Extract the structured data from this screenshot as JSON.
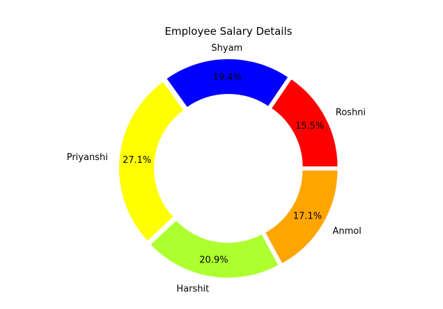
{
  "chart_data": {
    "type": "pie",
    "title": "Employee Salary Details",
    "donut": true,
    "categories": [
      "Roshni",
      "Shyam",
      "Priyanshi",
      "Harshit",
      "Anmol"
    ],
    "values": [
      15.5,
      19.4,
      27.1,
      20.9,
      17.1
    ],
    "value_labels": [
      "15.5%",
      "19.4%",
      "27.1%",
      "20.9%",
      "17.1%"
    ],
    "colors": [
      "#ff0000",
      "#0000ff",
      "#ffff00",
      "#adff2f",
      "#ffa500"
    ],
    "start_angle_deg": 0,
    "direction": "counterclockwise",
    "exploded": true
  }
}
